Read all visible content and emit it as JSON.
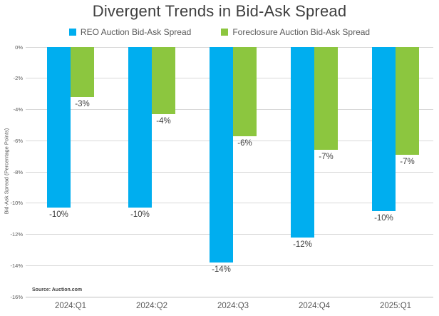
{
  "chart_data": {
    "type": "bar",
    "title": "Divergent Trends in Bid-Ask Spread",
    "ylabel": "Bid-Ask Spread (Percentage Points)",
    "source": "Source: Auction.com",
    "categories": [
      "2024:Q1",
      "2024:Q2",
      "2024:Q3",
      "2024:Q4",
      "2025:Q1"
    ],
    "series": [
      {
        "name": "REO Auction Bid-Ask Spread",
        "color": "#00AEEF",
        "values": [
          -10.3,
          -10.3,
          -13.8,
          -12.2,
          -10.5
        ],
        "labels": [
          "-10%",
          "-10%",
          "-14%",
          "-12%",
          "-10%"
        ]
      },
      {
        "name": "Foreclosure Auction Bid-Ask Spread",
        "color": "#8CC63F",
        "values": [
          -3.2,
          -4.3,
          -5.7,
          -6.6,
          -6.9
        ],
        "labels": [
          "-3%",
          "-4%",
          "-6%",
          "-7%",
          "-7%"
        ]
      }
    ],
    "ylim": [
      -16,
      0
    ],
    "yticks": [
      0,
      -2,
      -4,
      -6,
      -8,
      -10,
      -12,
      -14,
      -16
    ],
    "ytick_labels": [
      "0%",
      "-2%",
      "-4%",
      "-6%",
      "-8%",
      "-10%",
      "-12%",
      "-14%",
      "-16%"
    ],
    "grid": true,
    "legend_position": "top"
  },
  "colors": {
    "title_text": "#3F3F3F",
    "axis_text": "#595959",
    "data_label_text": "#404040",
    "gridline": "#D9D9D9",
    "axis_line": "#BFBFBF",
    "background": "#FFFFFF"
  }
}
